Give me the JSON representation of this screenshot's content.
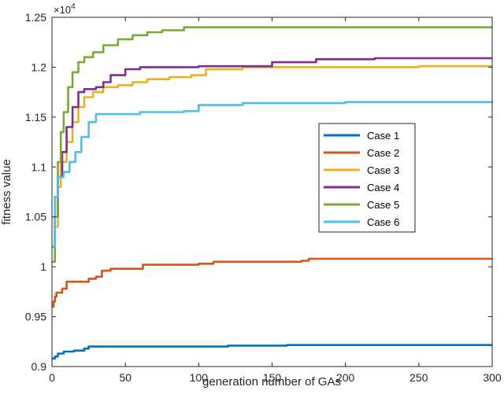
{
  "chart_data": {
    "type": "line",
    "title": "",
    "xlabel": "generation number of GAs",
    "ylabel": "fitness value",
    "xlim": [
      0,
      300
    ],
    "ylim": [
      9000,
      12500
    ],
    "y_multiplier_base": "×10",
    "y_multiplier_exp": "4",
    "x_ticks": [
      {
        "value": 0,
        "label": "0"
      },
      {
        "value": 50,
        "label": "50"
      },
      {
        "value": 100,
        "label": "100"
      },
      {
        "value": 150,
        "label": "150"
      },
      {
        "value": 200,
        "label": "200"
      },
      {
        "value": 250,
        "label": "250"
      },
      {
        "value": 300,
        "label": "300"
      }
    ],
    "y_ticks": [
      {
        "value": 9000,
        "label": "0.9"
      },
      {
        "value": 9500,
        "label": "0.95"
      },
      {
        "value": 10000,
        "label": "1"
      },
      {
        "value": 10500,
        "label": "1.05"
      },
      {
        "value": 11000,
        "label": "1.1"
      },
      {
        "value": 11500,
        "label": "1.15"
      },
      {
        "value": 12000,
        "label": "1.2"
      },
      {
        "value": 12500,
        "label": "1.25"
      }
    ],
    "grid": false,
    "legend_position": "center-right",
    "series": [
      {
        "name": "Case 1",
        "color": "#0072BD",
        "points": [
          [
            0,
            9080
          ],
          [
            2,
            9100
          ],
          [
            4,
            9130
          ],
          [
            8,
            9150
          ],
          [
            15,
            9160
          ],
          [
            22,
            9180
          ],
          [
            25,
            9200
          ],
          [
            30,
            9200
          ],
          [
            120,
            9210
          ],
          [
            160,
            9215
          ],
          [
            300,
            9215
          ]
        ]
      },
      {
        "name": "Case 2",
        "color": "#D95319",
        "points": [
          [
            0,
            9600
          ],
          [
            1,
            9650
          ],
          [
            2,
            9700
          ],
          [
            3,
            9740
          ],
          [
            7,
            9780
          ],
          [
            10,
            9850
          ],
          [
            25,
            9880
          ],
          [
            30,
            9900
          ],
          [
            34,
            9960
          ],
          [
            40,
            9980
          ],
          [
            60,
            9980
          ],
          [
            62,
            10020
          ],
          [
            100,
            10030
          ],
          [
            110,
            10050
          ],
          [
            170,
            10060
          ],
          [
            175,
            10080
          ],
          [
            300,
            10080
          ]
        ]
      },
      {
        "name": "Case 3",
        "color": "#EDB120",
        "points": [
          [
            0,
            10200
          ],
          [
            2,
            10400
          ],
          [
            4,
            10800
          ],
          [
            6,
            11050
          ],
          [
            10,
            11250
          ],
          [
            14,
            11450
          ],
          [
            18,
            11600
          ],
          [
            22,
            11700
          ],
          [
            28,
            11750
          ],
          [
            35,
            11800
          ],
          [
            45,
            11820
          ],
          [
            55,
            11850
          ],
          [
            65,
            11880
          ],
          [
            80,
            11900
          ],
          [
            95,
            11920
          ],
          [
            105,
            11980
          ],
          [
            130,
            12000
          ],
          [
            200,
            12000
          ],
          [
            250,
            12010
          ],
          [
            300,
            12010
          ]
        ]
      },
      {
        "name": "Case 4",
        "color": "#7E2F8E",
        "points": [
          [
            0,
            10200
          ],
          [
            2,
            10500
          ],
          [
            4,
            10900
          ],
          [
            7,
            11150
          ],
          [
            10,
            11400
          ],
          [
            14,
            11600
          ],
          [
            18,
            11750
          ],
          [
            22,
            11780
          ],
          [
            30,
            11800
          ],
          [
            35,
            11850
          ],
          [
            40,
            11920
          ],
          [
            50,
            11980
          ],
          [
            60,
            12000
          ],
          [
            100,
            12010
          ],
          [
            150,
            12050
          ],
          [
            180,
            12080
          ],
          [
            220,
            12090
          ],
          [
            300,
            12090
          ]
        ]
      },
      {
        "name": "Case 5",
        "color": "#77AC30",
        "points": [
          [
            0,
            10050
          ],
          [
            2,
            10500
          ],
          [
            4,
            11050
          ],
          [
            6,
            11350
          ],
          [
            8,
            11550
          ],
          [
            11,
            11800
          ],
          [
            14,
            11950
          ],
          [
            18,
            12050
          ],
          [
            22,
            12100
          ],
          [
            28,
            12150
          ],
          [
            35,
            12220
          ],
          [
            45,
            12280
          ],
          [
            55,
            12320
          ],
          [
            65,
            12350
          ],
          [
            75,
            12370
          ],
          [
            90,
            12400
          ],
          [
            100,
            12400
          ],
          [
            300,
            12400
          ]
        ]
      },
      {
        "name": "Case 6",
        "color": "#4DBEEE",
        "points": [
          [
            0,
            10200
          ],
          [
            2,
            10700
          ],
          [
            4,
            10900
          ],
          [
            8,
            10950
          ],
          [
            12,
            11050
          ],
          [
            16,
            11150
          ],
          [
            20,
            11300
          ],
          [
            25,
            11450
          ],
          [
            30,
            11530
          ],
          [
            60,
            11550
          ],
          [
            90,
            11560
          ],
          [
            100,
            11620
          ],
          [
            130,
            11640
          ],
          [
            200,
            11650
          ],
          [
            300,
            11660
          ]
        ]
      }
    ]
  }
}
